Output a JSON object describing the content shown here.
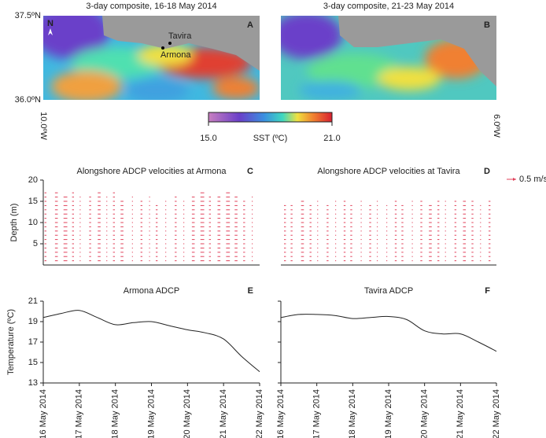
{
  "chart_data": [
    {
      "type": "map",
      "panel": "A",
      "title": "3-day composite, 16-18 May 2014",
      "north": "N",
      "places": [
        "Tavira",
        "Armona"
      ],
      "yticks": [
        {
          "value": 37.5,
          "label": "37.5ºN"
        },
        {
          "value": 36.0,
          "label": "36.0ºN"
        }
      ],
      "ylim": [
        36.0,
        37.5
      ],
      "xticks": [
        {
          "value": -10.0,
          "label": "10.0ºW"
        }
      ]
    },
    {
      "type": "map",
      "panel": "B",
      "title": "3-day composite, 21-23 May 2014",
      "xticks": [
        {
          "value": -6.0,
          "label": "6.0ºW"
        }
      ]
    },
    {
      "type": "colorbar",
      "title": "SST (ºC)",
      "xlim": [
        15,
        21
      ],
      "xticks": [
        {
          "value": 15,
          "label": "15.0"
        },
        {
          "value": 21,
          "label": "21.0"
        }
      ]
    },
    {
      "type": "quiver",
      "panel": "C",
      "title": "Alongshore ADCP velocities at Armona",
      "ylabel": "Depth (m)",
      "ylim": [
        0,
        20
      ],
      "yticks": [
        5,
        10,
        15,
        20
      ],
      "x": [
        0,
        0.25,
        0.5,
        0.75,
        1,
        1.25,
        1.5,
        1.75,
        2,
        2.25,
        2.5,
        2.75,
        3,
        3.25,
        3.5,
        3.75,
        4,
        4.25,
        4.5,
        4.75,
        5,
        5.25,
        5.5,
        5.75,
        6
      ],
      "top_depth": [
        17,
        17,
        16,
        17,
        16,
        16,
        17,
        16,
        17,
        15,
        16,
        15,
        16,
        14,
        15,
        16,
        15,
        16,
        17,
        16,
        16,
        17,
        16,
        15,
        16
      ],
      "u": [
        -0.1,
        0.15,
        0.2,
        0.1,
        -0.05,
        0.1,
        0.15,
        0.05,
        -0.1,
        -0.15,
        0.05,
        0.1,
        0.05,
        -0.1,
        -0.05,
        0.1,
        0.05,
        0.15,
        0.2,
        0.1,
        0.15,
        0.2,
        0.15,
        0.1,
        0.05
      ],
      "color": "#e0405a"
    },
    {
      "type": "quiver",
      "panel": "D",
      "title": "Alongshore ADCP velocities at Tavira",
      "ylim": [
        0,
        20
      ],
      "scale_label": "0.5 m/s",
      "scale_value": 0.5,
      "x": [
        0,
        0.25,
        0.5,
        0.75,
        1,
        1.25,
        1.5,
        1.75,
        2,
        2.25,
        2.5,
        2.75,
        3,
        3.25,
        3.5,
        3.75,
        4,
        4.25,
        4.5,
        4.75,
        5,
        5.25,
        5.5,
        5.75,
        6
      ],
      "top_depth": [
        14,
        14,
        15,
        14,
        15,
        14,
        15,
        15,
        14,
        15,
        14,
        15,
        14,
        15,
        14,
        15,
        15,
        14,
        15,
        15,
        15,
        15,
        15,
        14,
        15
      ],
      "u": [
        0.1,
        -0.1,
        0.15,
        0.1,
        -0.05,
        0.1,
        0.05,
        0.1,
        -0.1,
        0.05,
        0.1,
        -0.05,
        0.05,
        0.1,
        -0.1,
        0.05,
        0.1,
        0.15,
        0.1,
        -0.05,
        0.1,
        0.15,
        0.1,
        0.05,
        0.1
      ],
      "color": "#e0405a"
    },
    {
      "type": "line",
      "panel": "E",
      "title": "Armona ADCP",
      "ylabel": "Temperature (ºC)",
      "ylim": [
        13,
        21
      ],
      "yticks": [
        13,
        15,
        17,
        19,
        21
      ],
      "xlim": [
        0,
        6
      ],
      "xticks": [
        {
          "value": 0,
          "label": "16 May 2014"
        },
        {
          "value": 1,
          "label": "17 May 2014"
        },
        {
          "value": 2,
          "label": "18 May 2014"
        },
        {
          "value": 3,
          "label": "19 May 2014"
        },
        {
          "value": 4,
          "label": "20 May 2014"
        },
        {
          "value": 5,
          "label": "21 May 2014"
        },
        {
          "value": 6,
          "label": "22 May 2014"
        }
      ],
      "x": [
        0,
        0.5,
        1,
        1.5,
        2,
        2.5,
        3,
        3.5,
        4,
        4.5,
        5,
        5.5,
        6
      ],
      "values": [
        19.4,
        19.8,
        20.1,
        19.4,
        18.7,
        18.9,
        19.0,
        18.6,
        18.2,
        17.9,
        17.3,
        15.6,
        14.1
      ],
      "color": "#222222"
    },
    {
      "type": "line",
      "panel": "F",
      "title": "Tavira ADCP",
      "ylim": [
        13,
        21
      ],
      "yticks": [
        13,
        15,
        17,
        19,
        21
      ],
      "xlim": [
        0,
        6
      ],
      "xticks": [
        {
          "value": 0,
          "label": "16 May 2014"
        },
        {
          "value": 1,
          "label": "17 May 2014"
        },
        {
          "value": 2,
          "label": "18 May 2014"
        },
        {
          "value": 3,
          "label": "19 May 2014"
        },
        {
          "value": 4,
          "label": "20 May 2014"
        },
        {
          "value": 5,
          "label": "21 May 2014"
        },
        {
          "value": 6,
          "label": "22 May 2014"
        }
      ],
      "x": [
        0,
        0.5,
        1,
        1.5,
        2,
        2.5,
        3,
        3.5,
        4,
        4.5,
        5,
        5.5,
        6
      ],
      "values": [
        19.4,
        19.7,
        19.7,
        19.6,
        19.3,
        19.4,
        19.5,
        19.2,
        18.1,
        17.8,
        17.8,
        17.0,
        16.1
      ],
      "color": "#222222"
    }
  ]
}
